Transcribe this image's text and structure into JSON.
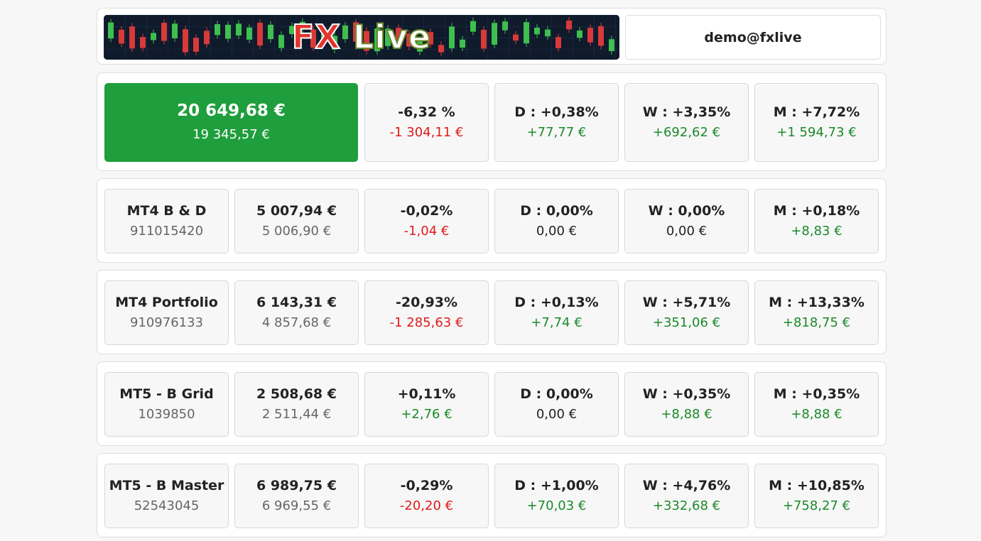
{
  "header": {
    "logo_text_fx": "FX",
    "logo_text_live": "Live",
    "user": "demo@fxlive"
  },
  "summary": {
    "balance": "20 649,68 €",
    "deposit": "19 345,57 €",
    "total_pct": "-6,32 %",
    "total_amt": "-1 304,11 €",
    "day_pct": "D : +0,38%",
    "day_amt": "+77,77 €",
    "week_pct": "W : +3,35%",
    "week_amt": "+692,62 €",
    "month_pct": "M : +7,72%",
    "month_amt": "+1 594,73 €"
  },
  "accounts": [
    {
      "name": "MT4 B & D",
      "number": "911015420",
      "balance": "5 007,94 €",
      "deposit": "5 006,90 €",
      "total_pct": "-0,02%",
      "total_amt": "-1,04 €",
      "day_pct": "D : 0,00%",
      "day_amt": "0,00 €",
      "week_pct": "W : 0,00%",
      "week_amt": "0,00 €",
      "month_pct": "M : +0,18%",
      "month_amt": "+8,83 €"
    },
    {
      "name": "MT4 Portfolio",
      "number": "910976133",
      "balance": "6 143,31 €",
      "deposit": "4 857,68 €",
      "total_pct": "-20,93%",
      "total_amt": "-1 285,63 €",
      "day_pct": "D : +0,13%",
      "day_amt": "+7,74 €",
      "week_pct": "W : +5,71%",
      "week_amt": "+351,06 €",
      "month_pct": "M : +13,33%",
      "month_amt": "+818,75 €"
    },
    {
      "name": "MT5 - B Grid",
      "number": "1039850",
      "balance": "2 508,68 €",
      "deposit": "2 511,44 €",
      "total_pct": "+0,11%",
      "total_amt": "+2,76 €",
      "day_pct": "D : 0,00%",
      "day_amt": "0,00 €",
      "week_pct": "W : +0,35%",
      "week_amt": "+8,88 €",
      "month_pct": "M : +0,35%",
      "month_amt": "+8,88 €"
    },
    {
      "name": "MT5 - B Master",
      "number": "52543045",
      "balance": "6 989,75 €",
      "deposit": "6 969,55 €",
      "total_pct": "-0,29%",
      "total_amt": "-20,20 €",
      "day_pct": "D : +1,00%",
      "day_amt": "+70,03 €",
      "week_pct": "W : +4,76%",
      "week_amt": "+332,68 €",
      "month_pct": "M : +10,85%",
      "month_amt": "+758,27 €"
    }
  ],
  "colors": {
    "positive": "#1a8a2a",
    "negative": "#e01a1a",
    "accent_green": "#1e9e3c"
  }
}
